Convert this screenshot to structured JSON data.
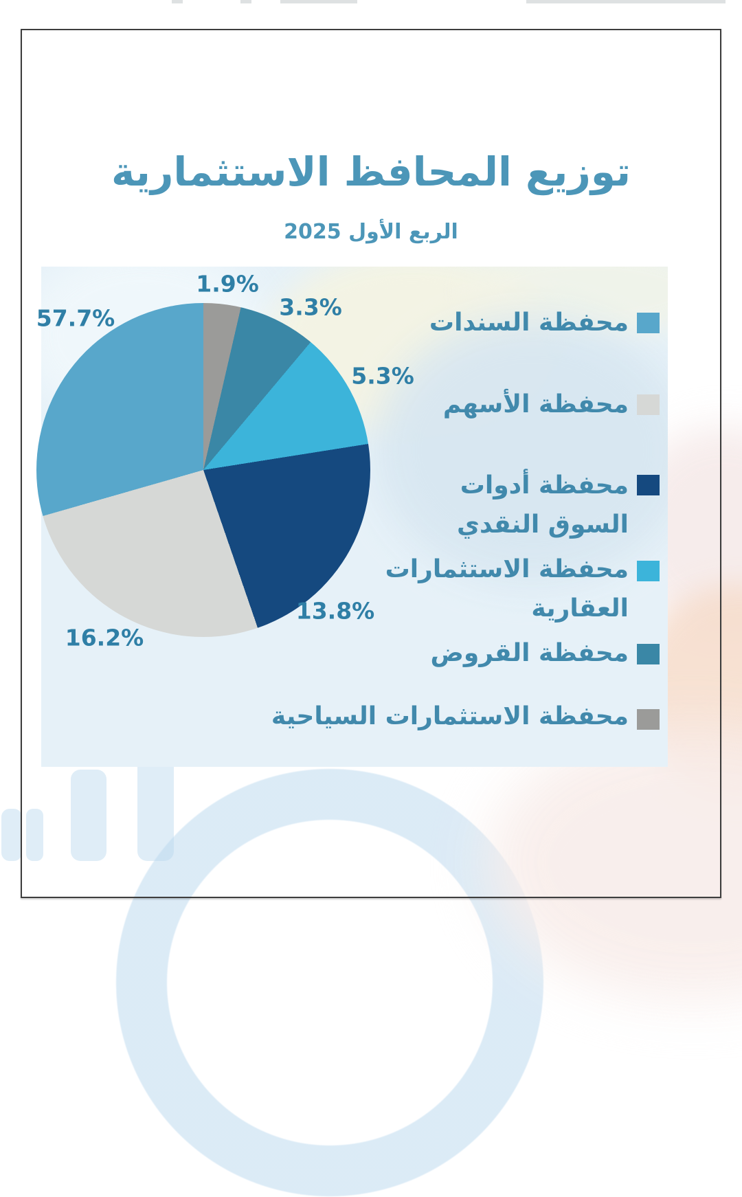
{
  "page": {
    "title": "توزيع المحافظ الاستثمارية",
    "subtitle": "الربع الأول 2025"
  },
  "colors": {
    "title_text": "#4C96B8",
    "percent_label_text": "#2F7FA6",
    "legend_text": "#4189AC",
    "panel_background": "#E6F1F8",
    "page_background": "#FFFFFF",
    "frame_border": "#3D3D3D"
  },
  "chart_data": {
    "type": "pie",
    "title": "توزيع المحافظ الاستثمارية",
    "subtitle": "الربع الأول 2025",
    "unit": "%",
    "legend_position": "right",
    "label_format": "percent",
    "slices": [
      {
        "label": "محفظة السندات",
        "value": 57.7,
        "display": "57.7%",
        "color": "#58A7CB",
        "legend_lines": [
          "محفظة السندات"
        ]
      },
      {
        "label": "محفظة الأسهم",
        "value": 16.2,
        "display": "16.2%",
        "color": "#D6D8D6",
        "legend_lines": [
          "محفظة الأسهم"
        ]
      },
      {
        "label": "محفظة أدوات السوق النقدي",
        "value": 13.8,
        "display": "13.8%",
        "color": "#15497F",
        "legend_lines": [
          "محفظة أدوات",
          "السوق النقدي"
        ]
      },
      {
        "label": "محفظة الاستثمارات العقارية",
        "value": 5.3,
        "display": "5.3%",
        "color": "#3CB4DA",
        "legend_lines": [
          "محفظة الاستثمارات",
          "العقارية"
        ]
      },
      {
        "label": "محفظة القروض",
        "value": 3.3,
        "display": "3.3%",
        "color": "#3A87A6",
        "legend_lines": [
          "محفظة القروض"
        ]
      },
      {
        "label": "محفظة الاستثمارات السياحية",
        "value": 1.9,
        "display": "1.9%",
        "color": "#9B9B99",
        "legend_lines": [
          "محفظة الاستثمارات السياحية"
        ]
      }
    ],
    "display_arcs": [
      {
        "slice_index": 5,
        "deg": 13
      },
      {
        "slice_index": 4,
        "deg": 27
      },
      {
        "slice_index": 3,
        "deg": 41
      },
      {
        "slice_index": 2,
        "deg": 80
      },
      {
        "slice_index": 1,
        "deg": 93
      },
      {
        "slice_index": 0,
        "deg": 106
      }
    ]
  }
}
